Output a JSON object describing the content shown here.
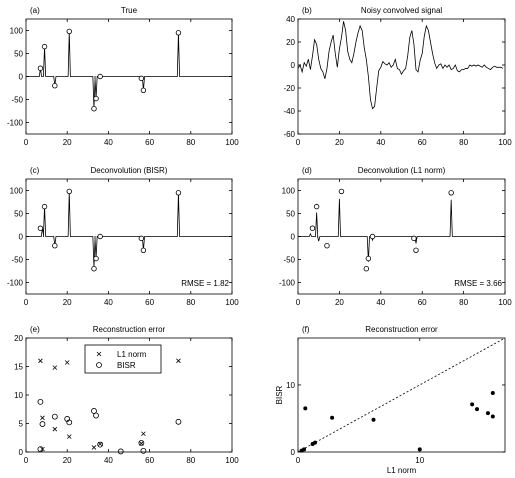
{
  "chart_data": [
    {
      "panel": "(a)",
      "type": "line",
      "title": "True",
      "xlim": [
        0,
        100
      ],
      "ylim": [
        -125,
        125
      ],
      "xticks": [
        0,
        20,
        40,
        60,
        80,
        100
      ],
      "yticks": [
        -100,
        -50,
        0,
        50,
        100
      ],
      "spikes": [
        {
          "x": 7,
          "y": 18
        },
        {
          "x": 9,
          "y": 65
        },
        {
          "x": 14,
          "y": -20
        },
        {
          "x": 21,
          "y": 98
        },
        {
          "x": 33,
          "y": -70
        },
        {
          "x": 34,
          "y": -48
        },
        {
          "x": 36,
          "y": 0
        },
        {
          "x": 56,
          "y": -4
        },
        {
          "x": 57,
          "y": -30
        },
        {
          "x": 74,
          "y": 95
        }
      ]
    },
    {
      "panel": "(b)",
      "type": "line",
      "title": "Noisy convolved signal",
      "xlim": [
        0,
        100
      ],
      "ylim": [
        -60,
        40
      ],
      "xticks": [
        0,
        20,
        40,
        60,
        80,
        100
      ],
      "yticks": [
        -60,
        -40,
        -20,
        0,
        20,
        40
      ],
      "x": [
        0,
        1,
        2,
        3,
        4,
        5,
        6,
        7,
        8,
        9,
        10,
        11,
        12,
        13,
        14,
        15,
        16,
        17,
        18,
        19,
        20,
        21,
        22,
        23,
        24,
        25,
        26,
        27,
        28,
        29,
        30,
        31,
        32,
        33,
        34,
        35,
        36,
        37,
        38,
        39,
        40,
        41,
        42,
        43,
        44,
        45,
        46,
        47,
        48,
        49,
        50,
        51,
        52,
        53,
        54,
        55,
        56,
        57,
        58,
        59,
        60,
        61,
        62,
        63,
        64,
        65,
        66,
        67,
        68,
        69,
        70,
        71,
        72,
        73,
        74,
        75,
        76,
        77,
        78,
        79,
        80,
        81,
        82,
        83,
        84,
        85,
        86,
        87,
        88,
        89,
        90,
        91,
        92,
        93,
        94,
        95,
        96,
        97,
        98,
        99
      ],
      "y": [
        -3,
        0,
        -6,
        2,
        -1,
        5,
        -4,
        8,
        22,
        18,
        5,
        -3,
        -6,
        -12,
        -3,
        12,
        20,
        26,
        10,
        -2,
        14,
        24,
        38,
        30,
        12,
        5,
        2,
        10,
        20,
        28,
        34,
        30,
        15,
        5,
        -10,
        -30,
        -38,
        -36,
        -20,
        -5,
        -2,
        3,
        1,
        0,
        2,
        -2,
        0,
        5,
        -3,
        -4,
        -8,
        -5,
        -3,
        8,
        24,
        30,
        18,
        -4,
        -6,
        4,
        10,
        25,
        34,
        30,
        20,
        10,
        2,
        -3,
        0,
        1,
        -3,
        0,
        -2,
        0,
        -4,
        -3,
        0,
        -5,
        -6,
        -4,
        -4,
        -3,
        -3,
        0,
        -1,
        0,
        -1,
        0,
        -1,
        -2,
        0,
        -2,
        -3,
        -4,
        -2,
        -1,
        -2,
        -2,
        -2,
        -3
      ]
    },
    {
      "panel": "(c)",
      "type": "line",
      "title": "Deconvolution (BISR)",
      "annotation": "RMSE = 1.82",
      "xlim": [
        0,
        100
      ],
      "ylim": [
        -125,
        125
      ],
      "xticks": [
        0,
        20,
        40,
        60,
        80,
        100
      ],
      "yticks": [
        -100,
        -50,
        0,
        50,
        100
      ],
      "spikes": [
        {
          "x": 8,
          "y": 20
        },
        {
          "x": 9,
          "y": 66
        },
        {
          "x": 14,
          "y": -20
        },
        {
          "x": 21,
          "y": 98
        },
        {
          "x": 33,
          "y": -68
        },
        {
          "x": 34,
          "y": -48
        },
        {
          "x": 36,
          "y": 0
        },
        {
          "x": 56,
          "y": 0
        },
        {
          "x": 57,
          "y": -30
        },
        {
          "x": 74,
          "y": 95
        }
      ],
      "true_markers": [
        {
          "x": 7,
          "y": 18
        },
        {
          "x": 9,
          "y": 65
        },
        {
          "x": 14,
          "y": -20
        },
        {
          "x": 21,
          "y": 98
        },
        {
          "x": 33,
          "y": -70
        },
        {
          "x": 34,
          "y": -48
        },
        {
          "x": 36,
          "y": 0
        },
        {
          "x": 56,
          "y": -4
        },
        {
          "x": 57,
          "y": -30
        },
        {
          "x": 74,
          "y": 95
        }
      ]
    },
    {
      "panel": "(d)",
      "type": "line",
      "title": "Deconvolution (L1 norm)",
      "annotation": "RMSE = 3.66",
      "xlim": [
        0,
        100
      ],
      "ylim": [
        -125,
        125
      ],
      "xticks": [
        0,
        20,
        40,
        60,
        80,
        100
      ],
      "yticks": [
        -100,
        -50,
        0,
        50,
        100
      ],
      "spikes": [
        {
          "x": 6,
          "y": 6
        },
        {
          "x": 9,
          "y": 52
        },
        {
          "x": 10,
          "y": -10
        },
        {
          "x": 20,
          "y": 82
        },
        {
          "x": 34,
          "y": -55
        },
        {
          "x": 36,
          "y": -8
        },
        {
          "x": 57,
          "y": -15
        },
        {
          "x": 74,
          "y": 80
        }
      ],
      "true_markers": [
        {
          "x": 7,
          "y": 18
        },
        {
          "x": 9,
          "y": 65
        },
        {
          "x": 14,
          "y": -20
        },
        {
          "x": 21,
          "y": 98
        },
        {
          "x": 33,
          "y": -70
        },
        {
          "x": 34,
          "y": -48
        },
        {
          "x": 36,
          "y": 0
        },
        {
          "x": 56,
          "y": -4
        },
        {
          "x": 57,
          "y": -30
        },
        {
          "x": 74,
          "y": 95
        }
      ]
    },
    {
      "panel": "(e)",
      "type": "scatter",
      "title": "Reconstruction error",
      "xlim": [
        0,
        100
      ],
      "ylim": [
        0,
        20
      ],
      "xticks": [
        0,
        20,
        40,
        60,
        80,
        100
      ],
      "yticks": [
        0,
        5,
        10,
        15,
        20
      ],
      "legend_position": "top-center",
      "series": [
        {
          "name": "L1 norm",
          "marker": "x",
          "points": [
            [
              7,
              16
            ],
            [
              8,
              6
            ],
            [
              8,
              0.5
            ],
            [
              14,
              14.8
            ],
            [
              14,
              4
            ],
            [
              20,
              15.7
            ],
            [
              21,
              2.7
            ],
            [
              32,
              14.3
            ],
            [
              33,
              0.8
            ],
            [
              36,
              1.4
            ],
            [
              56,
              1.5
            ],
            [
              57,
              3.2
            ],
            [
              74,
              16
            ]
          ]
        },
        {
          "name": "BISR",
          "marker": "o",
          "points": [
            [
              7,
              8.8
            ],
            [
              7,
              0.5
            ],
            [
              8,
              4.9
            ],
            [
              14,
              6.2
            ],
            [
              20,
              5.8
            ],
            [
              21,
              5.2
            ],
            [
              33,
              7.2
            ],
            [
              34,
              6.4
            ],
            [
              36,
              1.3
            ],
            [
              46,
              0.1
            ],
            [
              56,
              1.6
            ],
            [
              57,
              0.2
            ],
            [
              74,
              5.3
            ]
          ]
        }
      ]
    },
    {
      "panel": "(f)",
      "type": "scatter",
      "title": "Reconstruction error",
      "xlabel": "L1 norm",
      "ylabel": "BISR",
      "xlim": [
        0,
        17
      ],
      "ylim": [
        0,
        17
      ],
      "xticks": [
        0,
        10
      ],
      "yticks": [
        0,
        10
      ],
      "diagonal": true,
      "points": [
        [
          0.3,
          0.2
        ],
        [
          0.5,
          0.4
        ],
        [
          0.6,
          6.5
        ],
        [
          1.2,
          1.2
        ],
        [
          1.4,
          1.4
        ],
        [
          2.8,
          5.1
        ],
        [
          6.2,
          4.8
        ],
        [
          10,
          0.4
        ],
        [
          14.3,
          7.1
        ],
        [
          14.7,
          6.4
        ],
        [
          15.6,
          5.8
        ],
        [
          16,
          5.3
        ],
        [
          16,
          8.8
        ]
      ]
    }
  ]
}
